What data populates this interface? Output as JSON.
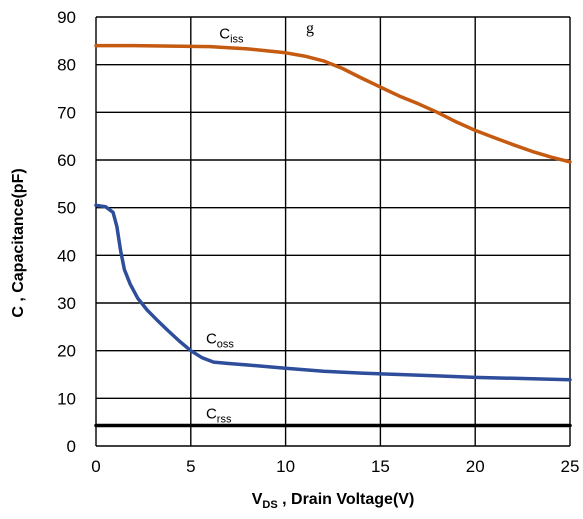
{
  "chart_data": {
    "type": "line",
    "title_fragment": "g",
    "xlabel": {
      "main": "V",
      "sub": "DS",
      "rest": " , Drain Voltage(V)"
    },
    "ylabel": "C , Capacitance(pF)",
    "xlim": [
      0,
      25
    ],
    "ylim": [
      0,
      90
    ],
    "x_ticks": [
      0,
      5,
      10,
      15,
      20,
      25
    ],
    "y_ticks": [
      0,
      10,
      20,
      30,
      40,
      50,
      60,
      70,
      80,
      90
    ],
    "grid": true,
    "series": [
      {
        "name": "Ciss",
        "label_main": "C",
        "label_sub": "iss",
        "label_at": [
          6.5,
          85.5
        ],
        "color": "#c55a11",
        "points": [
          [
            0,
            84
          ],
          [
            2,
            84
          ],
          [
            4,
            83.9
          ],
          [
            6,
            83.8
          ],
          [
            8,
            83.3
          ],
          [
            10,
            82.5
          ],
          [
            11,
            81.8
          ],
          [
            12,
            80.8
          ],
          [
            13,
            79.2
          ],
          [
            14,
            77.2
          ],
          [
            15,
            75.3
          ],
          [
            16,
            73.4
          ],
          [
            17,
            71.8
          ],
          [
            18,
            70
          ],
          [
            19,
            68
          ],
          [
            20,
            66.2
          ],
          [
            21,
            64.7
          ],
          [
            22,
            63.2
          ],
          [
            23,
            61.8
          ],
          [
            24,
            60.6
          ],
          [
            25,
            59.6
          ]
        ]
      },
      {
        "name": "Coss",
        "label_main": "C",
        "label_sub": "oss",
        "label_at": [
          5.8,
          21.5
        ],
        "color": "#2e4e9c",
        "points": [
          [
            0,
            50.5
          ],
          [
            0.5,
            50.2
          ],
          [
            0.9,
            49
          ],
          [
            1.1,
            46
          ],
          [
            1.3,
            41
          ],
          [
            1.5,
            37
          ],
          [
            1.8,
            34
          ],
          [
            2.2,
            31
          ],
          [
            2.7,
            28.5
          ],
          [
            3.2,
            26.5
          ],
          [
            3.8,
            24.2
          ],
          [
            4.4,
            22
          ],
          [
            5,
            20
          ],
          [
            5.6,
            18.5
          ],
          [
            6.2,
            17.6
          ],
          [
            7,
            17.3
          ],
          [
            8,
            17
          ],
          [
            10,
            16.3
          ],
          [
            12,
            15.7
          ],
          [
            14,
            15.3
          ],
          [
            16,
            15
          ],
          [
            18,
            14.7
          ],
          [
            20,
            14.4
          ],
          [
            22,
            14.2
          ],
          [
            24,
            14
          ],
          [
            25,
            13.9
          ]
        ]
      },
      {
        "name": "Crss",
        "label_main": "C",
        "label_sub": "rss",
        "label_at": [
          5.8,
          5.8
        ],
        "color": "#000000",
        "points": [
          [
            0,
            4.3
          ],
          [
            25,
            4.3
          ]
        ]
      }
    ]
  }
}
